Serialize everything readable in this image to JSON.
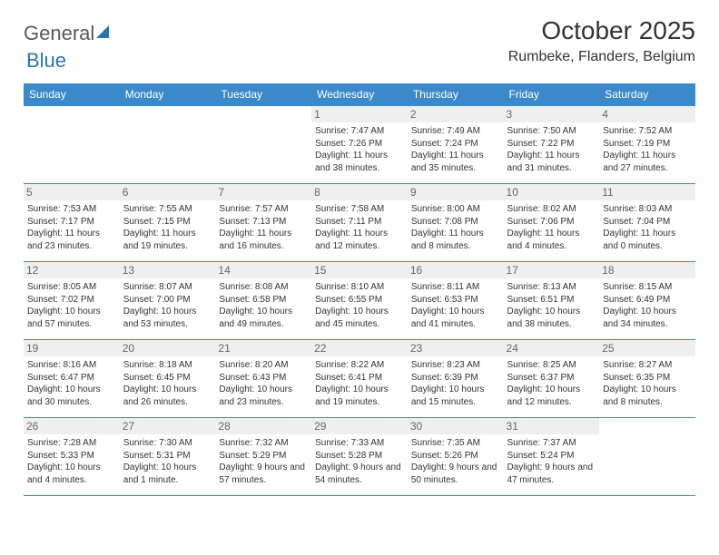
{
  "logo": {
    "part1": "General",
    "part2": "Blue"
  },
  "title": "October 2025",
  "location": "Rumbeke, Flanders, Belgium",
  "colors": {
    "header_bg": "#3b89c9",
    "header_text": "#ffffff",
    "border": "#3b89c9",
    "daynum_bg": "#efefef",
    "daynum_text": "#666666",
    "body_text": "#333333",
    "logo_gray": "#5a5a5a",
    "logo_blue": "#2a73b8"
  },
  "day_headers": [
    "Sunday",
    "Monday",
    "Tuesday",
    "Wednesday",
    "Thursday",
    "Friday",
    "Saturday"
  ],
  "weeks": [
    [
      {
        "n": "",
        "srise": "",
        "sset": "",
        "dl": ""
      },
      {
        "n": "",
        "srise": "",
        "sset": "",
        "dl": ""
      },
      {
        "n": "",
        "srise": "",
        "sset": "",
        "dl": ""
      },
      {
        "n": "1",
        "srise": "Sunrise: 7:47 AM",
        "sset": "Sunset: 7:26 PM",
        "dl": "Daylight: 11 hours and 38 minutes."
      },
      {
        "n": "2",
        "srise": "Sunrise: 7:49 AM",
        "sset": "Sunset: 7:24 PM",
        "dl": "Daylight: 11 hours and 35 minutes."
      },
      {
        "n": "3",
        "srise": "Sunrise: 7:50 AM",
        "sset": "Sunset: 7:22 PM",
        "dl": "Daylight: 11 hours and 31 minutes."
      },
      {
        "n": "4",
        "srise": "Sunrise: 7:52 AM",
        "sset": "Sunset: 7:19 PM",
        "dl": "Daylight: 11 hours and 27 minutes."
      }
    ],
    [
      {
        "n": "5",
        "srise": "Sunrise: 7:53 AM",
        "sset": "Sunset: 7:17 PM",
        "dl": "Daylight: 11 hours and 23 minutes."
      },
      {
        "n": "6",
        "srise": "Sunrise: 7:55 AM",
        "sset": "Sunset: 7:15 PM",
        "dl": "Daylight: 11 hours and 19 minutes."
      },
      {
        "n": "7",
        "srise": "Sunrise: 7:57 AM",
        "sset": "Sunset: 7:13 PM",
        "dl": "Daylight: 11 hours and 16 minutes."
      },
      {
        "n": "8",
        "srise": "Sunrise: 7:58 AM",
        "sset": "Sunset: 7:11 PM",
        "dl": "Daylight: 11 hours and 12 minutes."
      },
      {
        "n": "9",
        "srise": "Sunrise: 8:00 AM",
        "sset": "Sunset: 7:08 PM",
        "dl": "Daylight: 11 hours and 8 minutes."
      },
      {
        "n": "10",
        "srise": "Sunrise: 8:02 AM",
        "sset": "Sunset: 7:06 PM",
        "dl": "Daylight: 11 hours and 4 minutes."
      },
      {
        "n": "11",
        "srise": "Sunrise: 8:03 AM",
        "sset": "Sunset: 7:04 PM",
        "dl": "Daylight: 11 hours and 0 minutes."
      }
    ],
    [
      {
        "n": "12",
        "srise": "Sunrise: 8:05 AM",
        "sset": "Sunset: 7:02 PM",
        "dl": "Daylight: 10 hours and 57 minutes."
      },
      {
        "n": "13",
        "srise": "Sunrise: 8:07 AM",
        "sset": "Sunset: 7:00 PM",
        "dl": "Daylight: 10 hours and 53 minutes."
      },
      {
        "n": "14",
        "srise": "Sunrise: 8:08 AM",
        "sset": "Sunset: 6:58 PM",
        "dl": "Daylight: 10 hours and 49 minutes."
      },
      {
        "n": "15",
        "srise": "Sunrise: 8:10 AM",
        "sset": "Sunset: 6:55 PM",
        "dl": "Daylight: 10 hours and 45 minutes."
      },
      {
        "n": "16",
        "srise": "Sunrise: 8:11 AM",
        "sset": "Sunset: 6:53 PM",
        "dl": "Daylight: 10 hours and 41 minutes."
      },
      {
        "n": "17",
        "srise": "Sunrise: 8:13 AM",
        "sset": "Sunset: 6:51 PM",
        "dl": "Daylight: 10 hours and 38 minutes."
      },
      {
        "n": "18",
        "srise": "Sunrise: 8:15 AM",
        "sset": "Sunset: 6:49 PM",
        "dl": "Daylight: 10 hours and 34 minutes."
      }
    ],
    [
      {
        "n": "19",
        "srise": "Sunrise: 8:16 AM",
        "sset": "Sunset: 6:47 PM",
        "dl": "Daylight: 10 hours and 30 minutes."
      },
      {
        "n": "20",
        "srise": "Sunrise: 8:18 AM",
        "sset": "Sunset: 6:45 PM",
        "dl": "Daylight: 10 hours and 26 minutes."
      },
      {
        "n": "21",
        "srise": "Sunrise: 8:20 AM",
        "sset": "Sunset: 6:43 PM",
        "dl": "Daylight: 10 hours and 23 minutes."
      },
      {
        "n": "22",
        "srise": "Sunrise: 8:22 AM",
        "sset": "Sunset: 6:41 PM",
        "dl": "Daylight: 10 hours and 19 minutes."
      },
      {
        "n": "23",
        "srise": "Sunrise: 8:23 AM",
        "sset": "Sunset: 6:39 PM",
        "dl": "Daylight: 10 hours and 15 minutes."
      },
      {
        "n": "24",
        "srise": "Sunrise: 8:25 AM",
        "sset": "Sunset: 6:37 PM",
        "dl": "Daylight: 10 hours and 12 minutes."
      },
      {
        "n": "25",
        "srise": "Sunrise: 8:27 AM",
        "sset": "Sunset: 6:35 PM",
        "dl": "Daylight: 10 hours and 8 minutes."
      }
    ],
    [
      {
        "n": "26",
        "srise": "Sunrise: 7:28 AM",
        "sset": "Sunset: 5:33 PM",
        "dl": "Daylight: 10 hours and 4 minutes."
      },
      {
        "n": "27",
        "srise": "Sunrise: 7:30 AM",
        "sset": "Sunset: 5:31 PM",
        "dl": "Daylight: 10 hours and 1 minute."
      },
      {
        "n": "28",
        "srise": "Sunrise: 7:32 AM",
        "sset": "Sunset: 5:29 PM",
        "dl": "Daylight: 9 hours and 57 minutes."
      },
      {
        "n": "29",
        "srise": "Sunrise: 7:33 AM",
        "sset": "Sunset: 5:28 PM",
        "dl": "Daylight: 9 hours and 54 minutes."
      },
      {
        "n": "30",
        "srise": "Sunrise: 7:35 AM",
        "sset": "Sunset: 5:26 PM",
        "dl": "Daylight: 9 hours and 50 minutes."
      },
      {
        "n": "31",
        "srise": "Sunrise: 7:37 AM",
        "sset": "Sunset: 5:24 PM",
        "dl": "Daylight: 9 hours and 47 minutes."
      },
      {
        "n": "",
        "srise": "",
        "sset": "",
        "dl": ""
      }
    ]
  ]
}
